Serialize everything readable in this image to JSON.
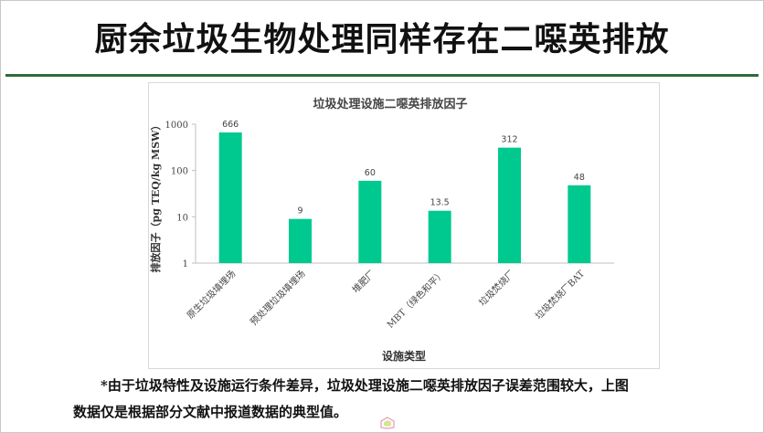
{
  "slide": {
    "title": "厨余垃圾生物处理同样存在二噁英排放",
    "footnote_line1": "*由于垃圾特性及设施运行条件差异，垃圾处理设施二噁英排放因子误差范围较大，上图",
    "footnote_line2": "数据仅是根据部分文献中报道数据的典型值。"
  },
  "colors": {
    "bar": "#00c98f",
    "title_rule": "#2f6b3a"
  },
  "chart_data": {
    "type": "bar",
    "title": "垃圾处理设施二噁英排放因子",
    "xlabel": "设施类型",
    "ylabel": "排放因子（pg TEQ/kg MSW）",
    "yscale": "log",
    "ylim": [
      1,
      1000
    ],
    "yticks": [
      1,
      10,
      100,
      1000
    ],
    "ytick_labels": [
      "1",
      "10",
      "100",
      "1000"
    ],
    "categories": [
      "原生垃圾填埋场",
      "预处理垃圾填埋场",
      "堆肥厂",
      "MBT（绿色和平）",
      "垃圾焚烧厂",
      "垃圾焚烧厂BAT"
    ],
    "values": [
      666,
      9,
      60,
      13.5,
      312,
      48
    ],
    "data_labels": [
      "666",
      "9",
      "60",
      "13.5",
      "312",
      "48"
    ],
    "grid": false,
    "legend": "none"
  }
}
